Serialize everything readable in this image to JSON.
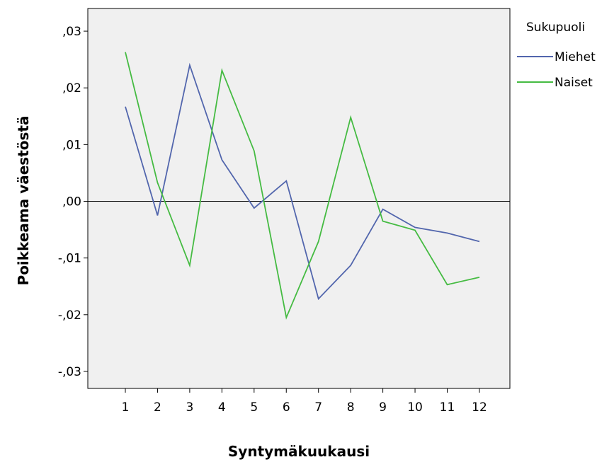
{
  "chart_data": {
    "type": "line",
    "xlabel": "Syntymäkuukausi",
    "ylabel": "Poikkeama väestöstä",
    "categories": [
      "1",
      "2",
      "3",
      "4",
      "5",
      "6",
      "7",
      "8",
      "9",
      "10",
      "11",
      "12"
    ],
    "ylim": [
      -0.033,
      0.034
    ],
    "yticks": [
      0.03,
      0.02,
      0.01,
      0.0,
      -0.01,
      -0.02,
      -0.03
    ],
    "ytick_labels": [
      ",03",
      ",02",
      ",01",
      ",00",
      "-,01",
      "-,02",
      "-,03"
    ],
    "reference_line": 0.0,
    "grid": false,
    "plot_background": "#f0f0f0",
    "legend": {
      "title": "Sukupuoli",
      "position": "right"
    },
    "series": [
      {
        "name": "Miehet",
        "color": "#5266ad",
        "values": [
          0.0167,
          -0.0025,
          0.024,
          0.0073,
          -0.0012,
          0.0036,
          -0.0172,
          -0.0113,
          -0.0014,
          -0.0046,
          -0.0056,
          -0.0071
        ]
      },
      {
        "name": "Naiset",
        "color": "#45bb42",
        "values": [
          0.0263,
          0.0033,
          -0.0113,
          0.0231,
          0.0089,
          -0.0205,
          -0.0071,
          0.0148,
          -0.0035,
          -0.0051,
          -0.0147,
          -0.0134
        ]
      }
    ]
  }
}
